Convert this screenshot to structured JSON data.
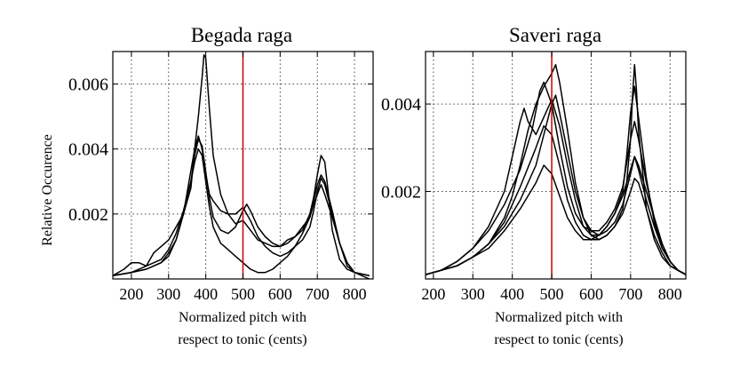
{
  "chart_data": [
    {
      "type": "line",
      "title": "Begada raga",
      "xlabel": [
        "Normalized pitch with",
        "respect to tonic (cents)"
      ],
      "ylabel": "Relative Occurence",
      "xlim": [
        150,
        850
      ],
      "ylim": [
        0,
        0.007
      ],
      "xticks": [
        200,
        300,
        400,
        500,
        600,
        700,
        800
      ],
      "yticks": [
        0.002,
        0.004,
        0.006
      ],
      "ytick_labels": [
        "0.002",
        "0.004",
        "0.006"
      ],
      "grid": true,
      "line_color": "#000000",
      "vline": {
        "x": 500,
        "color": "#cc0000"
      },
      "series": [
        {
          "x": [
            150,
            180,
            200,
            220,
            240,
            260,
            280,
            300,
            320,
            340,
            360,
            370,
            380,
            390,
            395,
            400,
            410,
            420,
            440,
            460,
            480,
            500,
            520,
            540,
            560,
            580,
            600,
            620,
            640,
            660,
            680,
            690,
            700,
            710,
            720,
            730,
            740,
            760,
            780,
            800,
            820,
            840
          ],
          "values": [
            0.0001,
            0.0003,
            0.0005,
            0.0005,
            0.0004,
            0.0008,
            0.001,
            0.0012,
            0.0016,
            0.002,
            0.0028,
            0.004,
            0.005,
            0.0062,
            0.0069,
            0.0068,
            0.0052,
            0.0038,
            0.0026,
            0.002,
            0.0017,
            0.0018,
            0.0015,
            0.0012,
            0.0011,
            0.001,
            0.001,
            0.0012,
            0.0013,
            0.0015,
            0.002,
            0.0025,
            0.0032,
            0.0038,
            0.0036,
            0.0026,
            0.0015,
            0.0006,
            0.0003,
            0.0002,
            0.0001,
            0.0
          ]
        },
        {
          "x": [
            150,
            200,
            240,
            280,
            300,
            320,
            340,
            355,
            370,
            380,
            390,
            400,
            410,
            420,
            440,
            460,
            480,
            500,
            520,
            540,
            560,
            580,
            600,
            620,
            640,
            660,
            680,
            690,
            700,
            710,
            720,
            740,
            760,
            780,
            800,
            840
          ],
          "values": [
            0.0001,
            0.0002,
            0.0003,
            0.0005,
            0.0007,
            0.0012,
            0.002,
            0.003,
            0.004,
            0.0044,
            0.004,
            0.0032,
            0.0026,
            0.0024,
            0.0021,
            0.002,
            0.002,
            0.0022,
            0.0018,
            0.0013,
            0.001,
            0.0008,
            0.0007,
            0.0008,
            0.001,
            0.0012,
            0.0016,
            0.0021,
            0.0027,
            0.0031,
            0.0029,
            0.002,
            0.0011,
            0.0004,
            0.0002,
            0.0001
          ]
        },
        {
          "x": [
            150,
            200,
            240,
            280,
            300,
            320,
            340,
            360,
            370,
            380,
            390,
            400,
            410,
            420,
            440,
            460,
            480,
            500,
            510,
            520,
            540,
            560,
            580,
            600,
            620,
            640,
            660,
            680,
            690,
            700,
            710,
            720,
            740,
            760,
            780,
            800,
            840
          ],
          "values": [
            0.0001,
            0.0002,
            0.0003,
            0.0005,
            0.0008,
            0.0012,
            0.002,
            0.003,
            0.0038,
            0.0043,
            0.0041,
            0.0033,
            0.0025,
            0.0019,
            0.0015,
            0.0014,
            0.0016,
            0.0021,
            0.0023,
            0.0021,
            0.0016,
            0.0013,
            0.0011,
            0.001,
            0.0011,
            0.0013,
            0.0016,
            0.0019,
            0.0023,
            0.0026,
            0.0029,
            0.0026,
            0.0019,
            0.0011,
            0.0005,
            0.0002,
            0.0001
          ]
        },
        {
          "x": [
            150,
            200,
            240,
            280,
            300,
            320,
            340,
            360,
            370,
            380,
            390,
            400,
            410,
            420,
            440,
            460,
            480,
            500,
            520,
            540,
            560,
            580,
            600,
            620,
            640,
            660,
            680,
            690,
            700,
            710,
            720,
            740,
            760,
            780,
            800,
            840
          ],
          "values": [
            0.0001,
            0.0002,
            0.0004,
            0.0006,
            0.0009,
            0.0014,
            0.0021,
            0.003,
            0.0036,
            0.004,
            0.0038,
            0.003,
            0.0022,
            0.0016,
            0.0011,
            0.0009,
            0.0007,
            0.0005,
            0.0003,
            0.0002,
            0.0002,
            0.0003,
            0.0005,
            0.0007,
            0.001,
            0.0014,
            0.0019,
            0.0024,
            0.0029,
            0.0032,
            0.003,
            0.0021,
            0.0011,
            0.0005,
            0.0002,
            0.0001
          ]
        }
      ]
    },
    {
      "type": "line",
      "title": "Saveri raga",
      "xlabel": [
        "Normalized pitch with",
        "respect to tonic (cents)"
      ],
      "ylabel": "",
      "xlim": [
        180,
        840
      ],
      "ylim": [
        0,
        0.0052
      ],
      "xticks": [
        200,
        300,
        400,
        500,
        600,
        700,
        800
      ],
      "yticks": [
        0.002,
        0.004
      ],
      "ytick_labels": [
        "0.002",
        "0.004"
      ],
      "grid": true,
      "line_color": "#000000",
      "vline": {
        "x": 500,
        "color": "#cc0000"
      },
      "series": [
        {
          "x": [
            180,
            220,
            260,
            300,
            340,
            380,
            400,
            420,
            440,
            460,
            480,
            500,
            510,
            520,
            540,
            560,
            580,
            600,
            620,
            640,
            660,
            680,
            690,
            700,
            705,
            710,
            715,
            720,
            740,
            760,
            780,
            800,
            820,
            840
          ],
          "values": [
            0.0001,
            0.0002,
            0.0003,
            0.0005,
            0.0008,
            0.0014,
            0.0019,
            0.0026,
            0.0034,
            0.004,
            0.0044,
            0.0047,
            0.0049,
            0.0045,
            0.0034,
            0.0022,
            0.0014,
            0.001,
            0.0009,
            0.001,
            0.0012,
            0.0016,
            0.0022,
            0.0032,
            0.0042,
            0.0049,
            0.0043,
            0.0034,
            0.0016,
            0.0009,
            0.0005,
            0.0003,
            0.0002,
            0.0001
          ]
        },
        {
          "x": [
            180,
            220,
            260,
            300,
            340,
            380,
            400,
            420,
            430,
            440,
            460,
            480,
            500,
            520,
            540,
            560,
            580,
            600,
            620,
            640,
            660,
            680,
            690,
            700,
            710,
            720,
            740,
            760,
            780,
            800,
            820,
            840
          ],
          "values": [
            0.0001,
            0.0002,
            0.0004,
            0.0007,
            0.0012,
            0.002,
            0.0028,
            0.0036,
            0.0039,
            0.0036,
            0.0033,
            0.0037,
            0.0041,
            0.0035,
            0.0026,
            0.0018,
            0.0012,
            0.001,
            0.001,
            0.0012,
            0.0015,
            0.002,
            0.0028,
            0.0038,
            0.0044,
            0.0037,
            0.0023,
            0.0013,
            0.0007,
            0.0004,
            0.0002,
            0.0001
          ]
        },
        {
          "x": [
            180,
            220,
            260,
            300,
            340,
            380,
            420,
            450,
            470,
            480,
            500,
            520,
            540,
            560,
            580,
            600,
            620,
            640,
            660,
            680,
            700,
            710,
            720,
            740,
            760,
            780,
            800,
            820,
            840
          ],
          "values": [
            0.0001,
            0.0002,
            0.0004,
            0.0007,
            0.0011,
            0.0017,
            0.0025,
            0.0034,
            0.0043,
            0.0045,
            0.004,
            0.003,
            0.0021,
            0.0015,
            0.0012,
            0.0011,
            0.0011,
            0.0013,
            0.0016,
            0.0021,
            0.0032,
            0.0036,
            0.0032,
            0.0022,
            0.0014,
            0.0008,
            0.0004,
            0.0002,
            0.0001
          ]
        },
        {
          "x": [
            180,
            220,
            260,
            300,
            340,
            380,
            420,
            460,
            480,
            500,
            510,
            520,
            540,
            560,
            580,
            600,
            620,
            640,
            660,
            680,
            700,
            710,
            720,
            740,
            760,
            780,
            800,
            820,
            840
          ],
          "values": [
            0.0001,
            0.0002,
            0.0003,
            0.0005,
            0.0008,
            0.0012,
            0.0018,
            0.0026,
            0.0033,
            0.004,
            0.0042,
            0.0038,
            0.0029,
            0.002,
            0.0014,
            0.0011,
            0.001,
            0.0011,
            0.0013,
            0.0017,
            0.0024,
            0.0028,
            0.0025,
            0.0018,
            0.0012,
            0.0007,
            0.0004,
            0.0002,
            0.0001
          ]
        },
        {
          "x": [
            180,
            220,
            260,
            300,
            340,
            380,
            420,
            460,
            480,
            500,
            520,
            540,
            560,
            580,
            600,
            620,
            640,
            660,
            680,
            700,
            710,
            720,
            740,
            760,
            780,
            800,
            820,
            840
          ],
          "values": [
            0.0001,
            0.0002,
            0.0003,
            0.0005,
            0.0008,
            0.0013,
            0.0021,
            0.003,
            0.0035,
            0.0033,
            0.0026,
            0.0018,
            0.0013,
            0.001,
            0.0009,
            0.0009,
            0.001,
            0.0012,
            0.0015,
            0.002,
            0.0023,
            0.0022,
            0.0016,
            0.001,
            0.0006,
            0.0003,
            0.0002,
            0.0001
          ]
        },
        {
          "x": [
            180,
            220,
            260,
            300,
            340,
            380,
            420,
            460,
            480,
            500,
            520,
            540,
            560,
            580,
            600,
            620,
            640,
            660,
            680,
            700,
            710,
            720,
            740,
            760,
            780,
            800,
            820,
            840
          ],
          "values": [
            0.0001,
            0.0002,
            0.0003,
            0.0005,
            0.0007,
            0.0011,
            0.0016,
            0.0022,
            0.0026,
            0.0024,
            0.0019,
            0.0014,
            0.0011,
            0.0009,
            0.0009,
            0.001,
            0.0012,
            0.0015,
            0.0019,
            0.0025,
            0.0028,
            0.0026,
            0.002,
            0.0014,
            0.0008,
            0.0004,
            0.0002,
            0.0001
          ]
        }
      ]
    }
  ]
}
